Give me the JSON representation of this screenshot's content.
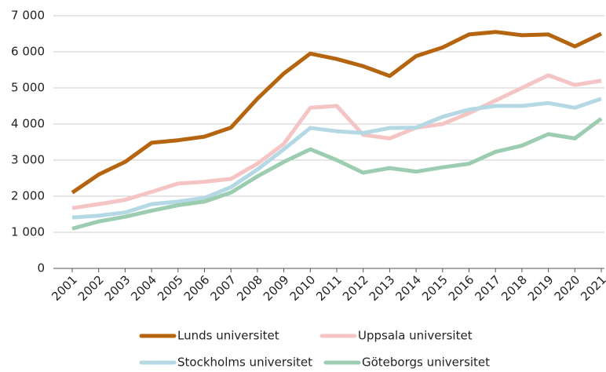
{
  "chart_data": {
    "type": "line",
    "categories": [
      "2001",
      "2002",
      "2003",
      "2004",
      "2005",
      "2006",
      "2007",
      "2008",
      "2009",
      "2010",
      "2011",
      "2012",
      "2013",
      "2014",
      "2015",
      "2016",
      "2017",
      "2018",
      "2019",
      "2020",
      "2021"
    ],
    "series": [
      {
        "name": "Lunds universitet",
        "color": "#b5650f",
        "values": [
          2100,
          2600,
          2950,
          3480,
          3550,
          3650,
          3900,
          4700,
          5400,
          5950,
          5800,
          5600,
          5330,
          5880,
          6120,
          6480,
          6550,
          6460,
          6480,
          6150,
          6500
        ]
      },
      {
        "name": "Uppsala universitet",
        "color": "#f5c4c4",
        "values": [
          1670,
          1780,
          1900,
          2120,
          2350,
          2400,
          2480,
          2900,
          3450,
          4450,
          4500,
          3700,
          3600,
          3900,
          4000,
          4300,
          4650,
          5000,
          5350,
          5080,
          5200
        ]
      },
      {
        "name": "Stockholms universitet",
        "color": "#b4d8e4",
        "values": [
          1410,
          1460,
          1550,
          1780,
          1850,
          1950,
          2250,
          2740,
          3300,
          3890,
          3800,
          3750,
          3890,
          3900,
          4200,
          4400,
          4500,
          4500,
          4580,
          4450,
          4700
        ]
      },
      {
        "name": "Göteborgs universitet",
        "color": "#9ccdb0",
        "values": [
          1100,
          1300,
          1430,
          1600,
          1750,
          1850,
          2100,
          2550,
          2950,
          3300,
          3000,
          2650,
          2780,
          2680,
          2800,
          2900,
          3230,
          3400,
          3720,
          3600,
          4150
        ]
      }
    ],
    "ylim": [
      0,
      7000
    ],
    "yticks": [
      0,
      {
        "value": 1000,
        "label": "1 000"
      },
      {
        "value": 2000,
        "label": "2 000"
      },
      {
        "value": 3000,
        "label": "3 000"
      },
      {
        "value": 4000,
        "label": "4 000"
      },
      {
        "value": 5000,
        "label": "5 000"
      },
      {
        "value": 6000,
        "label": "6 000"
      },
      {
        "value": 7000,
        "label": "7 000"
      }
    ],
    "grid": true,
    "legend": "bottom"
  }
}
